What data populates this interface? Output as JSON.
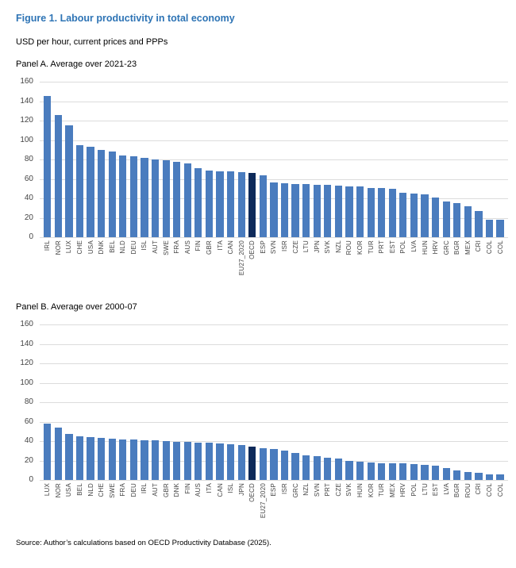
{
  "figure": {
    "title": "Figure 1. Labour productivity in total economy",
    "subtitle": "USD per hour, current prices and PPPs",
    "source": "Source: Author’s calculations based on OECD Productivity Database (2025)."
  },
  "colors": {
    "bar": "#4A7CBE",
    "highlight_bar": "#0E2A5A",
    "title_text": "#2E74B5",
    "gridline": "#DCDCDC",
    "axis_text": "#444444"
  },
  "chart_data": [
    {
      "type": "bar",
      "title": "Panel A. Average over 2021-23",
      "ylim": [
        0,
        160
      ],
      "ytick_step": 20,
      "grid": true,
      "legend": "none",
      "y_ticks": [
        "160",
        "140",
        "120",
        "100",
        "80",
        "60",
        "40",
        "20",
        "0"
      ],
      "highlight_category": "OECD",
      "categories": [
        "IRL",
        "NOR",
        "LUX",
        "CHE",
        "USA",
        "DNK",
        "BEL",
        "NLD",
        "DEU",
        "ISL",
        "AUT",
        "SWE",
        "FRA",
        "AUS",
        "FIN",
        "GBR",
        "ITA",
        "CAN",
        "EU27_2020",
        "OECD",
        "ESP",
        "SVN",
        "ISR",
        "CZE",
        "LTU",
        "JPN",
        "SVK",
        "NZL",
        "ROU",
        "KOR",
        "TUR",
        "PRT",
        "EST",
        "POL",
        "LVA",
        "HUN",
        "HRV",
        "GRC",
        "BGR",
        "MEX",
        "CRI",
        "COL",
        "COL"
      ],
      "values": [
        145,
        126,
        115,
        94.5,
        93,
        89.5,
        88.5,
        84,
        83,
        82,
        80,
        79.5,
        77.5,
        76,
        71,
        68.5,
        68,
        67.5,
        67,
        66.5,
        64,
        56,
        55.5,
        55,
        54.5,
        54,
        53.5,
        53,
        52.5,
        52,
        51,
        50.5,
        50,
        46,
        45,
        44.5,
        40.5,
        36.5,
        35.5,
        32,
        27,
        18,
        18
      ]
    },
    {
      "type": "bar",
      "title": "Panel B. Average over 2000-07",
      "ylim": [
        0,
        160
      ],
      "ytick_step": 20,
      "grid": true,
      "legend": "none",
      "y_ticks": [
        "160",
        "140",
        "120",
        "100",
        "80",
        "60",
        "40",
        "20",
        "0"
      ],
      "highlight_category": "OECD",
      "categories": [
        "LUX",
        "NOR",
        "USA",
        "BEL",
        "NLD",
        "CHE",
        "SWE",
        "FRA",
        "DEU",
        "IRL",
        "AUT",
        "GBR",
        "DNK",
        "FIN",
        "AUS",
        "ITA",
        "CAN",
        "ISL",
        "JPN",
        "OECD",
        "EU27_2020",
        "ESP",
        "ISR",
        "GRC",
        "NZL",
        "SVN",
        "PRT",
        "CZE",
        "SVK",
        "HUN",
        "KOR",
        "TUR",
        "MEX",
        "HRV",
        "POL",
        "LTU",
        "EST",
        "LVA",
        "BGR",
        "ROU",
        "CRI",
        "COL",
        "COL"
      ],
      "values": [
        58,
        54,
        47.5,
        45,
        44.5,
        43,
        42.5,
        42,
        41.5,
        41,
        40.5,
        40,
        39.5,
        39,
        38.5,
        38,
        37.5,
        37,
        36,
        34.5,
        32.5,
        32,
        30,
        27.5,
        25.5,
        24.5,
        23,
        22,
        20,
        18.5,
        18,
        17.5,
        17.5,
        17,
        16,
        15.5,
        14.5,
        12.5,
        10,
        8.5,
        7.5,
        5.5,
        5.5
      ]
    }
  ]
}
